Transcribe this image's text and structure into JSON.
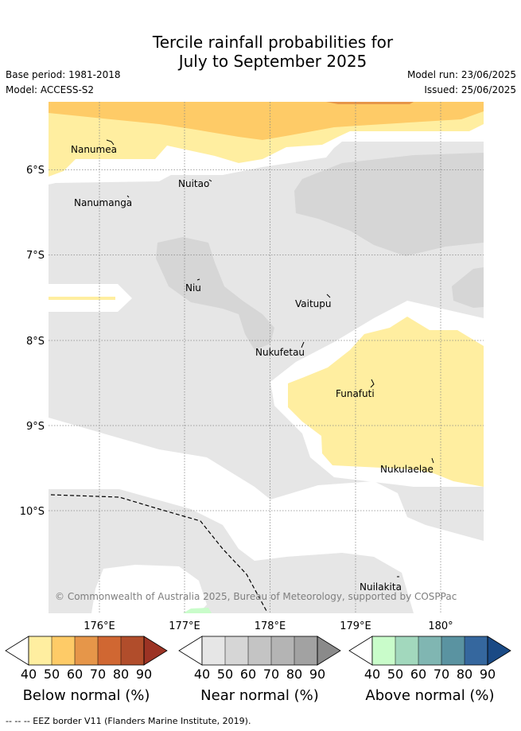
{
  "header": {
    "title_line1": "Tercile rainfall probabilities for",
    "title_line2": "July to September 2025",
    "base_period": "Base period: 1981-2018",
    "model": "Model: ACCESS-S2",
    "model_run": "Model run: 23/06/2025",
    "issued": "Issued: 25/06/2025"
  },
  "map": {
    "lat_labels": [
      "6°S",
      "7°S",
      "8°S",
      "9°S",
      "10°S"
    ],
    "lon_labels": [
      "176°E",
      "177°E",
      "178°E",
      "179°E",
      "180°"
    ],
    "places": [
      {
        "name": "Nanumea"
      },
      {
        "name": "Nuitao"
      },
      {
        "name": "Nanumanga"
      },
      {
        "name": "Niu"
      },
      {
        "name": "Vaitupu"
      },
      {
        "name": "Nukufetau"
      },
      {
        "name": "Funafuti"
      },
      {
        "name": "Nukulaelae"
      },
      {
        "name": "Nuilakita"
      }
    ],
    "copyright": "© Commonwealth of Australia 2025, Bureau of Meteorology, supported by COSPPac"
  },
  "legend": {
    "ticks": [
      "40",
      "50",
      "60",
      "70",
      "80",
      "90"
    ],
    "below": {
      "label": "Below normal (%)",
      "colors": [
        "#ffffff",
        "#ffeea0",
        "#fecb67",
        "#e69649",
        "#d06732",
        "#b14d2b",
        "#9c3324"
      ]
    },
    "near": {
      "label": "Near normal (%)",
      "colors": [
        "#ffffff",
        "#e6e6e6",
        "#d6d6d6",
        "#c4c4c4",
        "#b4b4b4",
        "#a2a2a2",
        "#8a8a8a"
      ]
    },
    "above": {
      "label": "Above normal (%)",
      "colors": [
        "#ffffff",
        "#c9fcca",
        "#a2d8bd",
        "#80b6b2",
        "#5a93a1",
        "#35679e",
        "#1a4a85"
      ]
    }
  },
  "footer": {
    "eez_note": "--  --  -- EEZ border V11 (Flanders Marine Institute, 2019)."
  }
}
